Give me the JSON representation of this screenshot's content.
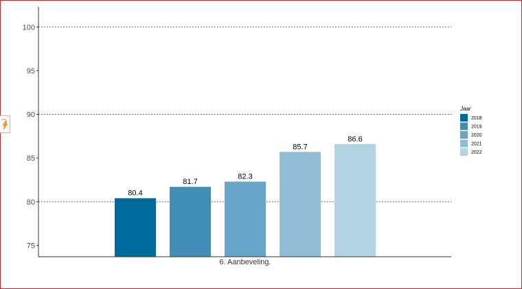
{
  "chart_data": {
    "type": "bar",
    "categories": [
      "6. Aanbeveling."
    ],
    "series": [
      {
        "name": "2018",
        "values": [
          80.4
        ],
        "color": "#006b9c"
      },
      {
        "name": "2019",
        "values": [
          81.7
        ],
        "color": "#418db6"
      },
      {
        "name": "2020",
        "values": [
          82.3
        ],
        "color": "#66a5c5"
      },
      {
        "name": "2021",
        "values": [
          85.7
        ],
        "color": "#90bdd4"
      },
      {
        "name": "2022",
        "values": [
          86.6
        ],
        "color": "#b3d2e2"
      }
    ],
    "data_labels": [
      "80.4",
      "81.7",
      "82.3",
      "85.7",
      "86.6"
    ],
    "title": "",
    "xlabel": "",
    "ylabel": "",
    "ylim": [
      73.7,
      102.3
    ],
    "yticks": [
      75,
      80,
      85,
      90,
      95,
      100
    ],
    "ytick_labels": [
      "75",
      "80",
      "85",
      "90",
      "95",
      "100"
    ],
    "grid": "horizontal dotted at 80, 90, 100",
    "legend": {
      "title": "Jaar",
      "position": "right"
    }
  },
  "icons": {
    "side_widget": "lightning-icon"
  }
}
